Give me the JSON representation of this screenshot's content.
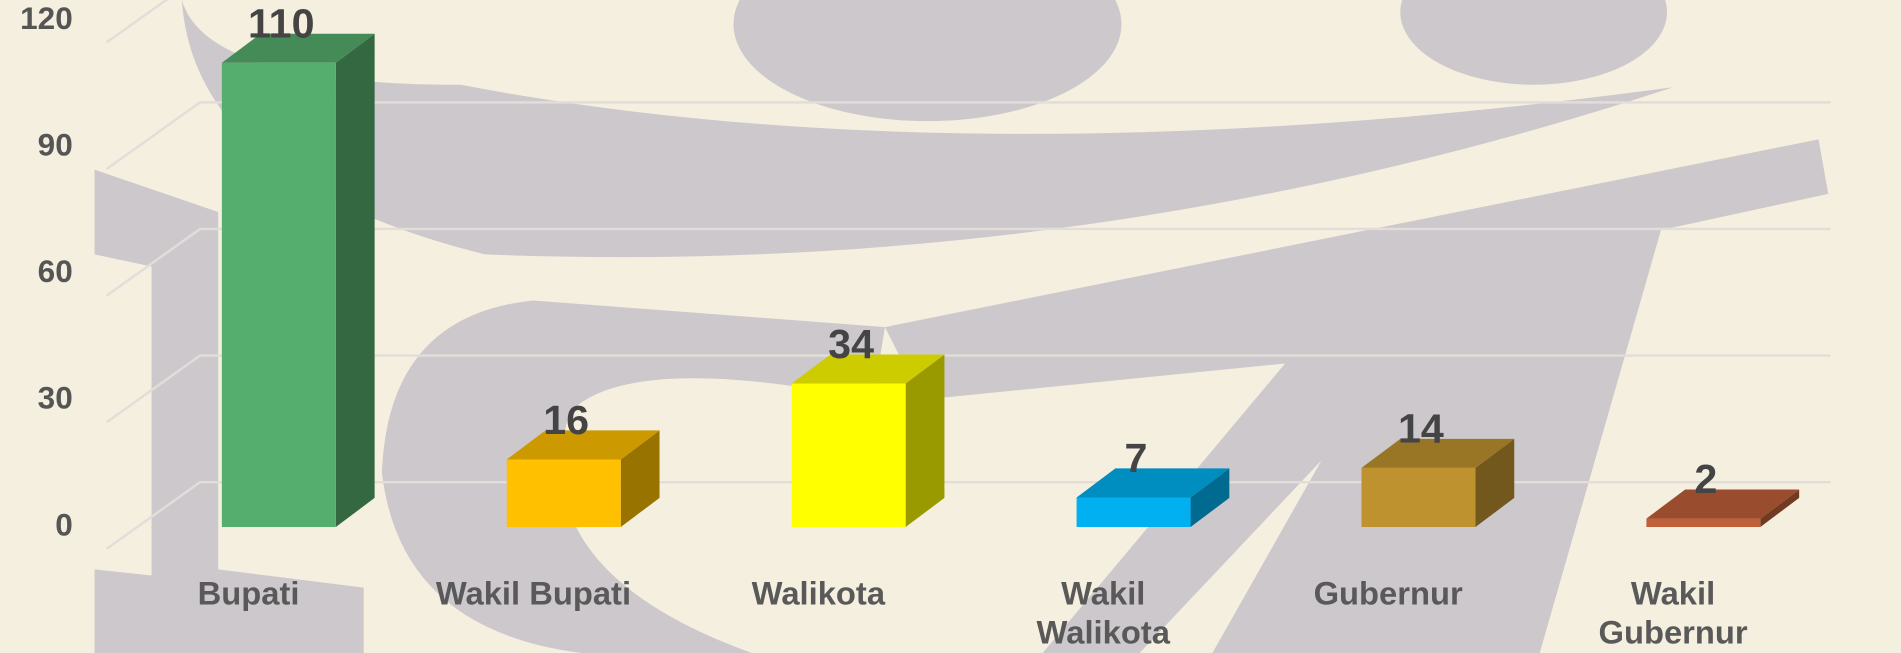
{
  "chart_data": {
    "type": "bar3d",
    "categories": [
      "Bupati",
      "Wakil Bupati",
      "Walikota",
      "Wakil Walikota",
      "Gubernur",
      "Wakil Gubernur"
    ],
    "series": [
      {
        "values": [
          110,
          16,
          34,
          7,
          14,
          2
        ],
        "colors": [
          "#55ae6d",
          "#ffc000",
          "#ffff00",
          "#00b0f0",
          "#bf9230",
          "#c0603a"
        ]
      }
    ],
    "ylim": [
      0,
      120
    ],
    "yticks": [
      0,
      30,
      60,
      90,
      120
    ],
    "grid": true
  }
}
